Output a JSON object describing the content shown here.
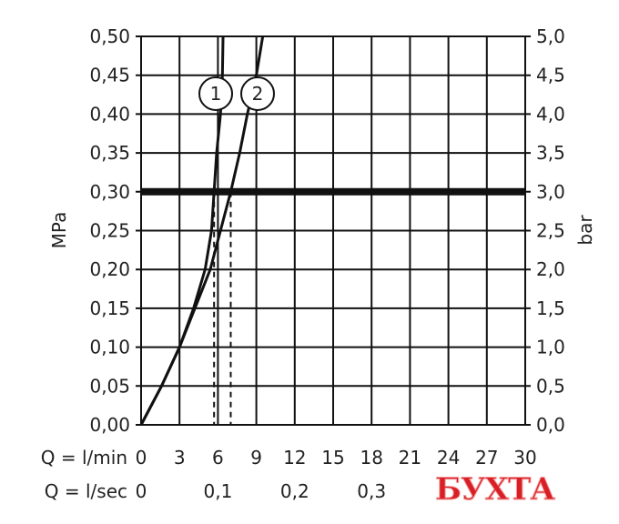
{
  "chart_data": {
    "type": "line",
    "xlabel": "Q = l/min",
    "xlabel2": "Q = l/sec",
    "ylabel": "MPa",
    "ylabel_right": "bar",
    "xlim": [
      0,
      30
    ],
    "ylim": [
      0,
      0.5
    ],
    "ylim_right": [
      0,
      5.0
    ],
    "grid": true,
    "x_ticks": [
      "0",
      "3",
      "6",
      "9",
      "12",
      "15",
      "18",
      "21",
      "24",
      "27",
      "30"
    ],
    "x2_ticks": [
      {
        "label": "0",
        "q": 0
      },
      {
        "label": "0,1",
        "q": 6
      },
      {
        "label": "0,2",
        "q": 12
      },
      {
        "label": "0,3",
        "q": 18
      }
    ],
    "y_ticks": [
      "0,00",
      "0,05",
      "0,10",
      "0,15",
      "0,20",
      "0,25",
      "0,30",
      "0,35",
      "0,40",
      "0,45",
      "0,50"
    ],
    "y_right_ticks": [
      "0,0",
      "0,5",
      "1,0",
      "1,5",
      "2,0",
      "2,5",
      "3,0",
      "3,5",
      "4,0",
      "4,5",
      "5,0"
    ],
    "reference_line": {
      "y": 0.3
    },
    "series": [
      {
        "name": "1",
        "x": [
          0,
          1.6,
          3.0,
          4.1,
          5.0,
          5.5,
          5.7,
          5.9,
          6.2,
          6.35,
          6.4
        ],
        "y": [
          0,
          0.05,
          0.1,
          0.15,
          0.2,
          0.25,
          0.3,
          0.35,
          0.4,
          0.45,
          0.5
        ],
        "flow_at_0_3": 5.7
      },
      {
        "name": "2",
        "x": [
          0,
          1.6,
          3.0,
          4.2,
          5.4,
          6.2,
          7.0,
          7.7,
          8.3,
          9.0,
          9.5
        ],
        "y": [
          0,
          0.05,
          0.1,
          0.15,
          0.2,
          0.25,
          0.3,
          0.35,
          0.4,
          0.45,
          0.5
        ],
        "flow_at_0_3": 7.0
      }
    ]
  },
  "watermark": "БУХТА"
}
